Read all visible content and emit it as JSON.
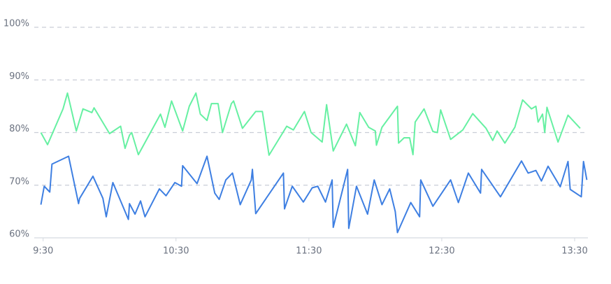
{
  "chart_data": {
    "type": "line",
    "xlim": [
      566,
      816
    ],
    "xticks": [
      {
        "value": 570,
        "label": "9:30"
      },
      {
        "value": 630,
        "label": "10:30"
      },
      {
        "value": 690,
        "label": "11:30"
      },
      {
        "value": 750,
        "label": "12:30"
      },
      {
        "value": 810,
        "label": "13:30"
      }
    ],
    "ylim": [
      60,
      100
    ],
    "yticks": [
      {
        "value": 60,
        "label": "60%"
      },
      {
        "value": 70,
        "label": "70%"
      },
      {
        "value": 80,
        "label": "80%"
      },
      {
        "value": 90,
        "label": "90%"
      },
      {
        "value": 100,
        "label": "100%"
      }
    ],
    "grid": true,
    "series": [
      {
        "color": "#66f0a2",
        "x": [
          569,
          572,
          579,
          581,
          585,
          588,
          592,
          593,
          600,
          605,
          607,
          609,
          610,
          613,
          623,
          625,
          628,
          633,
          636,
          639,
          641,
          644,
          646,
          649,
          651,
          655,
          656,
          660,
          666,
          669,
          672,
          680,
          683,
          688,
          691,
          696,
          698,
          701,
          707,
          711,
          713,
          717,
          720,
          720.5,
          723,
          730,
          730.5,
          733,
          735.5,
          737,
          738,
          742,
          746,
          748,
          749.5,
          754,
          759.5,
          764,
          770,
          773,
          775,
          778.5,
          783,
          786.5,
          790.5,
          792.5,
          793.5,
          795.5,
          796.5,
          797.5,
          802.5,
          807,
          812.5
        ],
        "values": [
          80,
          77.7,
          84.5,
          87.5,
          80.3,
          84.5,
          83.8,
          84.7,
          79.8,
          81.2,
          77,
          79.5,
          80,
          75.8,
          83.5,
          81,
          86,
          80.3,
          85,
          87.5,
          83.5,
          82.3,
          85.5,
          85.5,
          80,
          85.5,
          86,
          80.8,
          84,
          84,
          75.7,
          81.2,
          80.5,
          84,
          80,
          78.2,
          85.3,
          76.5,
          81.6,
          77.5,
          83.8,
          81,
          80.3,
          77.6,
          81,
          85,
          78,
          79,
          79,
          75.8,
          82,
          84.5,
          80.2,
          80,
          84.3,
          78.7,
          80.5,
          83.6,
          80.8,
          78.5,
          80.3,
          78,
          81,
          86.2,
          84.5,
          85,
          82,
          83.5,
          80,
          84.8,
          78.2,
          83.3,
          80.8
        ]
      },
      {
        "color": "#3e7fe2",
        "x": [
          569,
          570.5,
          573,
          574,
          581.5,
          586,
          586.5,
          592.5,
          597,
          598.5,
          601.5,
          608.5,
          609,
          611.5,
          614,
          616,
          622.5,
          625.5,
          629.5,
          632.5,
          633,
          639.5,
          644,
          647.5,
          649.5,
          652.5,
          655.5,
          659,
          664,
          664.5,
          666,
          678.5,
          679,
          682.5,
          687.5,
          691.5,
          694,
          697.5,
          700.5,
          701,
          707.5,
          708,
          711.5,
          716.5,
          719.5,
          723,
          726.5,
          729,
          730,
          736,
          740,
          740.5,
          746,
          754,
          757.5,
          762,
          767.5,
          768,
          776.5,
          786,
          789,
          792.5,
          795,
          798,
          803.5,
          807,
          808,
          813,
          814,
          815.5
        ],
        "values": [
          66.3,
          69.8,
          68.7,
          74,
          75.5,
          66.5,
          67.5,
          71.7,
          67.5,
          64,
          70.5,
          63.5,
          66.5,
          64.5,
          67,
          64,
          69.3,
          68,
          70.5,
          69.8,
          73.7,
          70.3,
          75.5,
          68.5,
          67.3,
          71,
          72.3,
          66.3,
          71,
          73,
          64.6,
          72.3,
          65.5,
          69.8,
          66.8,
          69.5,
          69.8,
          66.8,
          71,
          62,
          73,
          61.8,
          69.8,
          64.5,
          71,
          66.3,
          69.3,
          65,
          61,
          66.7,
          64,
          71,
          66,
          71,
          66.7,
          72.3,
          68.5,
          73,
          67.8,
          74.6,
          72.3,
          72.8,
          70.8,
          73.6,
          69.7,
          74.5,
          69.2,
          67.8,
          74.5,
          71
        ]
      }
    ]
  }
}
